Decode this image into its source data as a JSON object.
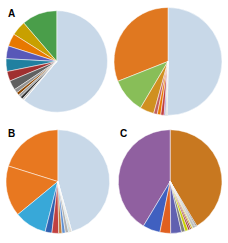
{
  "chart_data": [
    {
      "type": "pie",
      "title": "A",
      "values": [
        61.15,
        11.29,
        4.73,
        4.06,
        4.06,
        4.06,
        3.11,
        3.05,
        1.23,
        0.88,
        0.88,
        0.85,
        0.54,
        0.11
      ],
      "colors": [
        "#c8d8e8",
        "#4a9e4a",
        "#c8a000",
        "#e87800",
        "#5858b8",
        "#2080a0",
        "#a03030",
        "#606060",
        "#909090",
        "#8b4500",
        "#a0a0a0",
        "#303030",
        "#b8b8b8",
        "#d8d8d8"
      ]
    },
    {
      "type": "pie",
      "values": [
        50.22,
        31.01,
        10.49,
        4.23,
        1.09,
        1.04,
        1.0,
        0.42,
        0.22,
        0.22,
        0.06
      ],
      "colors": [
        "#c8d8e8",
        "#e07820",
        "#88be58",
        "#d09020",
        "#c06060",
        "#e87800",
        "#c04040",
        "#9060c0",
        "#60c060",
        "#808080",
        "#404040"
      ]
    },
    {
      "type": "pie",
      "title": "B",
      "values": [
        45.2,
        19.94,
        15.64,
        9.99,
        2.09,
        2.09,
        1.04,
        1.0,
        1.0,
        0.4,
        0.26,
        0.26,
        0.04
      ],
      "colors": [
        "#c8d8e8",
        "#e87820",
        "#e87820",
        "#38a8d8",
        "#3060b0",
        "#c04040",
        "#c08040",
        "#6090d0",
        "#b0b0b0",
        "#a0c8e0",
        "#a0a060",
        "#909090",
        "#d0d0d0"
      ]
    },
    {
      "type": "pie",
      "title": "C",
      "values": [
        37.0,
        37.0,
        4.86,
        3.0,
        3.0,
        1.04,
        0.88,
        0.52,
        0.42,
        0.4,
        0.26,
        0.26,
        0.26,
        0.26,
        0.25
      ],
      "colors": [
        "#c87820",
        "#9060a0",
        "#4060c0",
        "#e06020",
        "#6060b0",
        "#808080",
        "#c8d000",
        "#a03030",
        "#802020",
        "#d0a000",
        "#a0c080",
        "#404040",
        "#606060",
        "#909090",
        "#505050"
      ]
    }
  ]
}
